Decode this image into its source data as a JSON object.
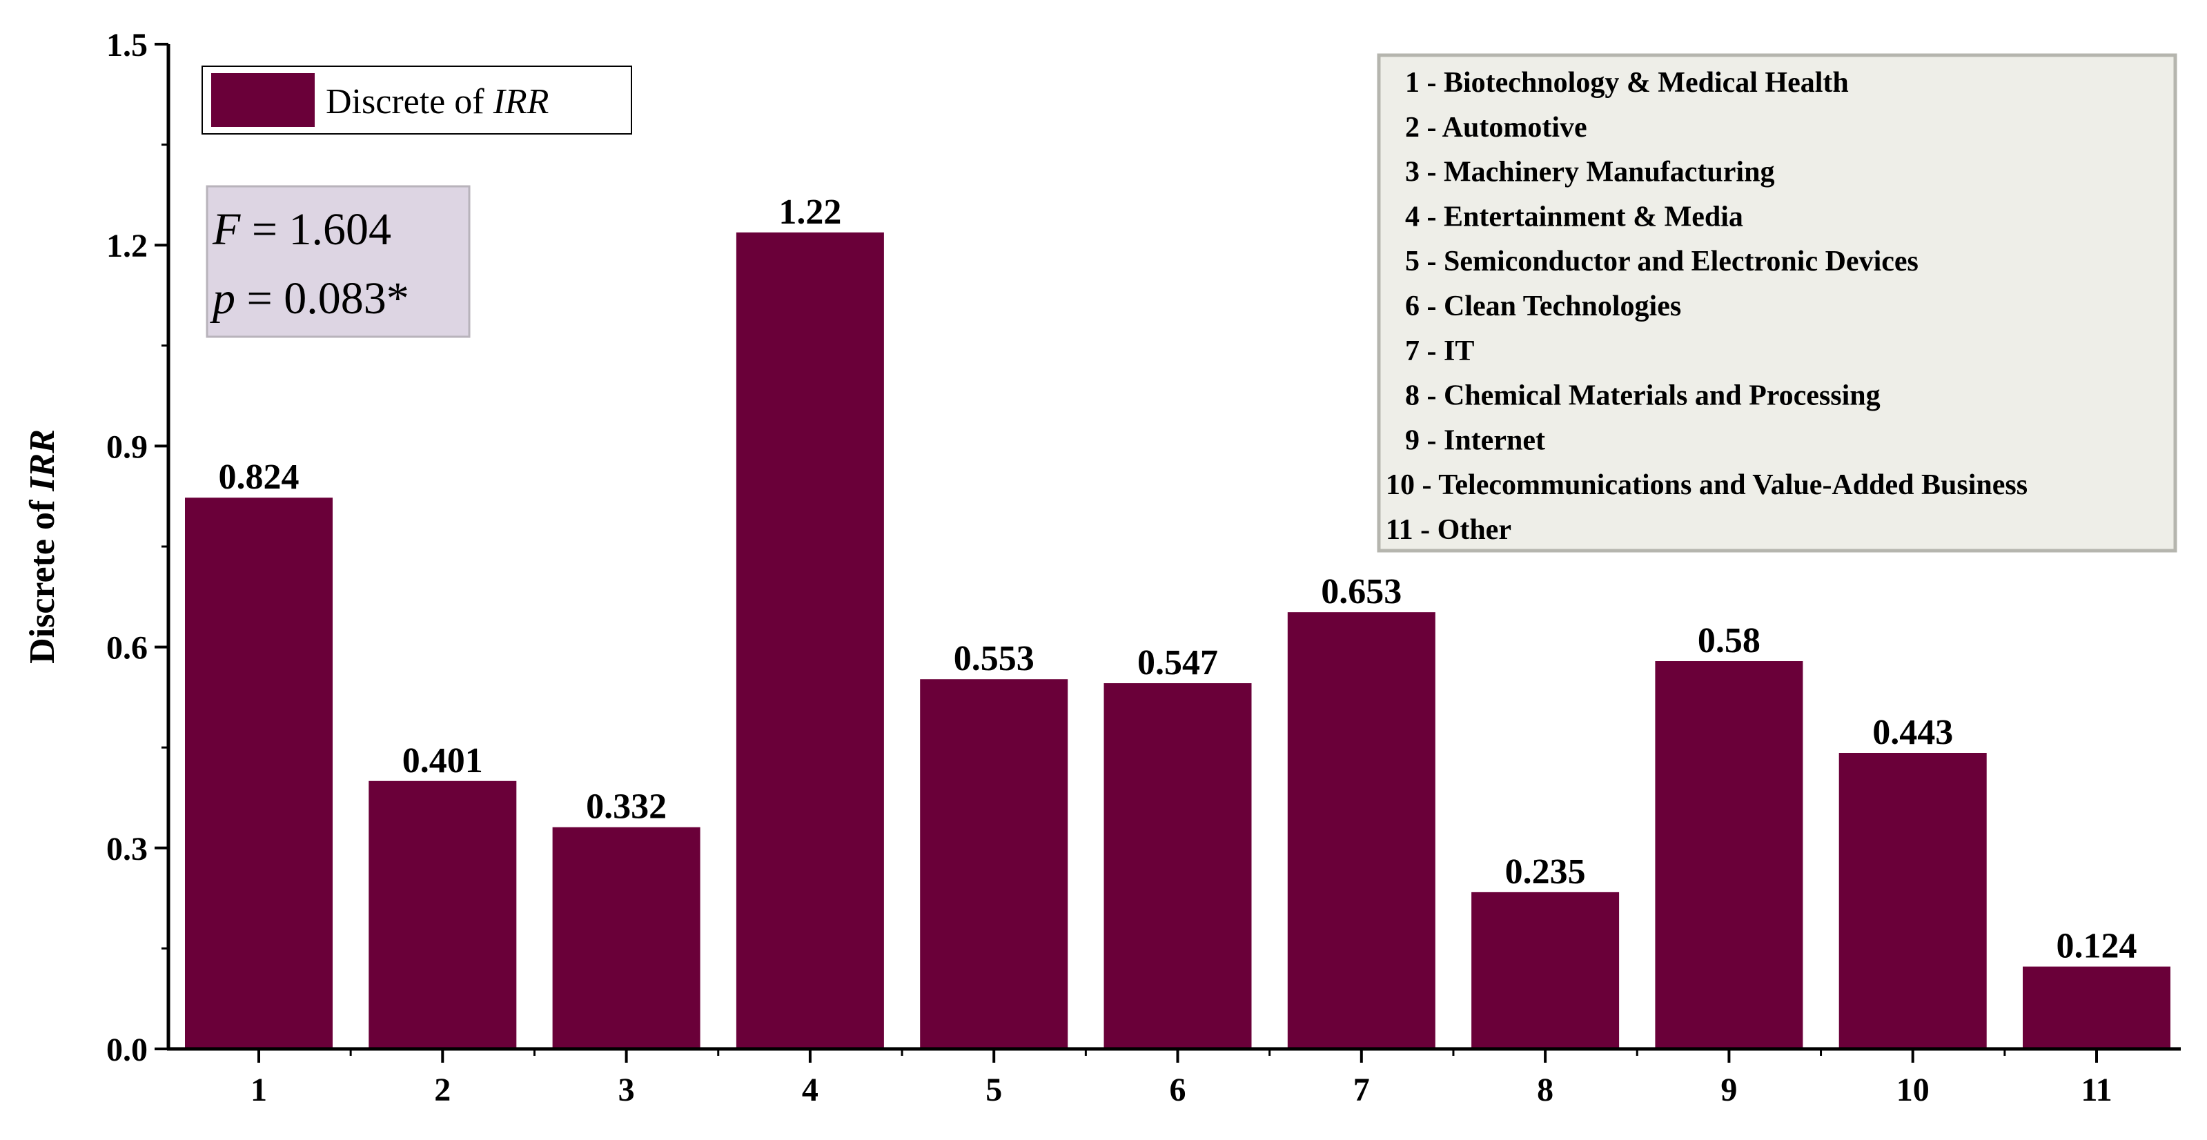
{
  "chart_data": {
    "type": "bar",
    "categories": [
      "1",
      "2",
      "3",
      "4",
      "5",
      "6",
      "7",
      "8",
      "9",
      "10",
      "11"
    ],
    "series": [
      {
        "name": "Discrete of IRR",
        "values": [
          0.824,
          0.401,
          0.332,
          1.22,
          0.553,
          0.547,
          0.653,
          0.235,
          0.58,
          0.443,
          0.124
        ]
      }
    ],
    "data_labels": [
      "0.824",
      "0.401",
      "0.332",
      "1.22",
      "0.553",
      "0.547",
      "0.653",
      "0.235",
      "0.58",
      "0.443",
      "0.124"
    ],
    "ylabel": {
      "prefix": "Discrete of ",
      "italic": "IRR"
    },
    "xlabel": "",
    "ylim": [
      0,
      1.5
    ],
    "y_ticks": [
      "0.0",
      "0.3",
      "0.6",
      "0.9",
      "1.2",
      "1.5"
    ],
    "grid": false,
    "bar_color": "#6a0039",
    "legend": {
      "placement": "top-left",
      "prefix": "Discrete of ",
      "italic": "IRR"
    },
    "stats_box": {
      "placement": "top-left",
      "f_symbol": "F",
      "f_value": " = 1.604",
      "p_symbol": "p",
      "p_value": " = 0.083*",
      "background": "#ddd5e3"
    },
    "category_key": {
      "placement": "top-right",
      "background": "#eeeee8",
      "items": [
        "1 - Biotechnology & Medical Health",
        "2 - Automotive",
        "3 - Machinery Manufacturing",
        "4 - Entertainment & Media",
        "5 - Semiconductor and Electronic Devices",
        "6 - Clean Technologies",
        "7 - IT",
        "8 - Chemical Materials and Processing",
        "9 - Internet",
        "10 - Telecommunications and Value-Added Business",
        "11 - Other"
      ]
    }
  }
}
